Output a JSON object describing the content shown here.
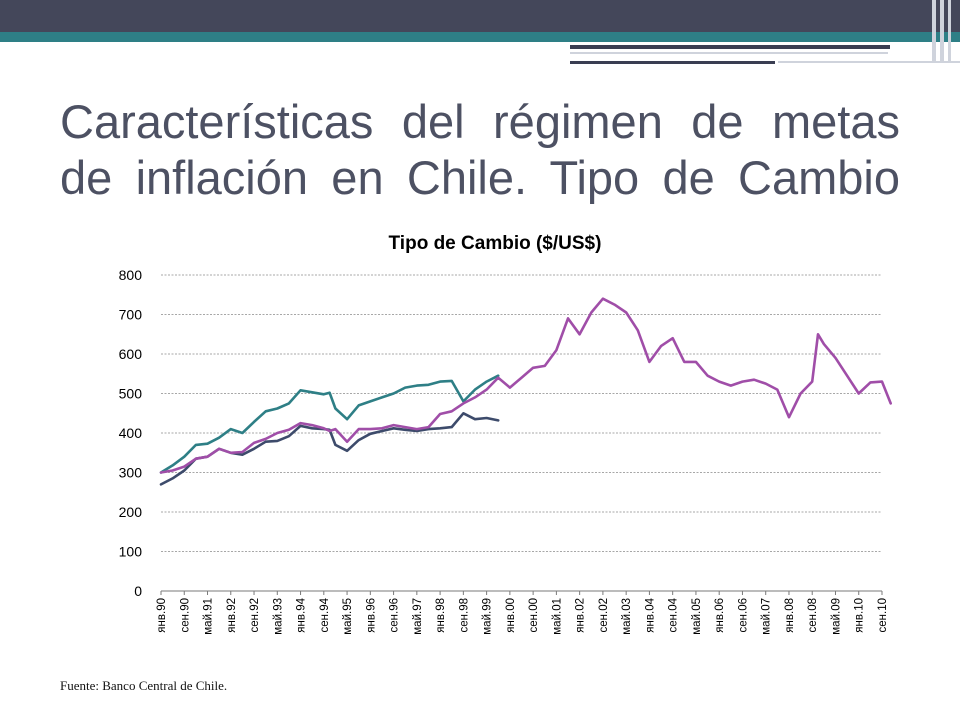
{
  "slide": {
    "title": "Características del régimen de metas de inflación en Chile. Tipo de Cambio",
    "source": "Fuente: Banco Central de Chile."
  },
  "chart_data": {
    "type": "line",
    "title": "Tipo de Cambio ($/US$)",
    "xlabel": "",
    "ylabel": "",
    "ylim": [
      0,
      800
    ],
    "yticks": [
      0,
      100,
      200,
      300,
      400,
      500,
      600,
      700,
      800
    ],
    "grid": true,
    "legend": "none",
    "x_tick_labels": [
      "янв.90",
      "сен.90",
      "май.91",
      "янв.92",
      "сен.92",
      "май.93",
      "янв.94",
      "сен.94",
      "май.95",
      "янв.96",
      "сен.96",
      "май.97",
      "янв.98",
      "сен.98",
      "май.99",
      "янв.00",
      "сен.00",
      "май.01",
      "янв.02",
      "сен.02",
      "май.03",
      "янв.04",
      "сен.04",
      "май.05",
      "янв.06",
      "сен.06",
      "май.07",
      "янв.08",
      "сен.08",
      "май.09",
      "янв.10",
      "сен.10"
    ],
    "series": [
      {
        "color": "#2e7f86",
        "x": [
          "1990-01",
          "1990-05",
          "1990-09",
          "1991-01",
          "1991-05",
          "1991-09",
          "1992-01",
          "1992-05",
          "1992-09",
          "1993-01",
          "1993-05",
          "1993-09",
          "1994-01",
          "1994-05",
          "1994-09",
          "1994-11",
          "1995-01",
          "1995-05",
          "1995-09",
          "1996-01",
          "1996-05",
          "1996-09",
          "1997-01",
          "1997-05",
          "1997-09",
          "1998-01",
          "1998-05",
          "1998-09",
          "1999-01",
          "1999-05",
          "1999-09"
        ],
        "y": [
          300,
          318,
          340,
          370,
          373,
          388,
          410,
          400,
          428,
          455,
          462,
          475,
          508,
          503,
          498,
          502,
          462,
          435,
          470,
          480,
          490,
          500,
          515,
          520,
          522,
          530,
          532,
          480,
          510,
          530,
          545
        ]
      },
      {
        "color": "#3d4b6b",
        "x": [
          "1990-01",
          "1990-05",
          "1990-09",
          "1991-01",
          "1991-05",
          "1991-09",
          "1992-01",
          "1992-05",
          "1992-09",
          "1993-01",
          "1993-05",
          "1993-09",
          "1994-01",
          "1994-05",
          "1994-09",
          "1994-11",
          "1995-01",
          "1995-05",
          "1995-09",
          "1996-01",
          "1996-05",
          "1996-09",
          "1997-01",
          "1997-05",
          "1997-09",
          "1998-01",
          "1998-05",
          "1998-09",
          "1999-01",
          "1999-05",
          "1999-09"
        ],
        "y": [
          270,
          285,
          305,
          335,
          340,
          360,
          350,
          345,
          360,
          378,
          380,
          392,
          418,
          412,
          410,
          408,
          370,
          355,
          382,
          398,
          405,
          412,
          408,
          405,
          410,
          412,
          415,
          450,
          435,
          438,
          432
        ]
      },
      {
        "color": "#a04ea8",
        "x": [
          "1990-01",
          "1990-05",
          "1990-09",
          "1991-01",
          "1991-05",
          "1991-09",
          "1992-01",
          "1992-05",
          "1992-09",
          "1993-01",
          "1993-05",
          "1993-09",
          "1994-01",
          "1994-05",
          "1994-09",
          "1994-11",
          "1995-01",
          "1995-05",
          "1995-09",
          "1996-01",
          "1996-05",
          "1996-09",
          "1997-01",
          "1997-05",
          "1997-09",
          "1998-01",
          "1998-05",
          "1998-09",
          "1999-01",
          "1999-05",
          "1999-09",
          "2000-01",
          "2000-05",
          "2000-09",
          "2001-01",
          "2001-05",
          "2001-09",
          "2002-01",
          "2002-05",
          "2002-09",
          "2003-01",
          "2003-05",
          "2003-09",
          "2004-01",
          "2004-05",
          "2004-09",
          "2005-01",
          "2005-05",
          "2005-09",
          "2006-01",
          "2006-05",
          "2006-09",
          "2007-01",
          "2007-05",
          "2007-09",
          "2008-01",
          "2008-05",
          "2008-09",
          "2008-11",
          "2009-01",
          "2009-05",
          "2009-09",
          "2010-01",
          "2010-05",
          "2010-09",
          "2010-12"
        ],
        "y": [
          300,
          305,
          315,
          335,
          340,
          360,
          350,
          352,
          375,
          385,
          400,
          408,
          425,
          420,
          412,
          405,
          410,
          378,
          410,
          410,
          412,
          420,
          415,
          410,
          415,
          448,
          455,
          475,
          490,
          510,
          540,
          515,
          540,
          565,
          570,
          610,
          690,
          650,
          705,
          740,
          725,
          705,
          660,
          580,
          620,
          640,
          580,
          580,
          545,
          530,
          520,
          530,
          535,
          525,
          510,
          440,
          500,
          530,
          650,
          625,
          590,
          545,
          500,
          528,
          530,
          475
        ]
      }
    ]
  }
}
